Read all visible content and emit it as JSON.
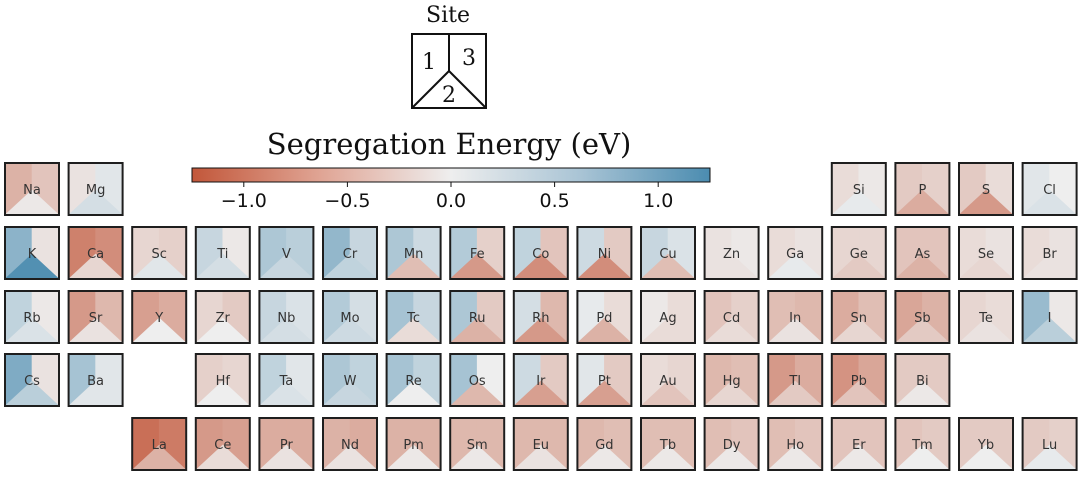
{
  "legend": {
    "title": "Site",
    "site_labels": [
      "1",
      "3",
      "2"
    ]
  },
  "colorbar": {
    "title": "Segregation Energy (eV)",
    "range": [
      -1.25,
      1.25
    ],
    "ticks": [
      -1.0,
      -0.5,
      0.0,
      0.5,
      1.0
    ],
    "tick_labels": [
      "−1.0",
      "−0.5",
      "0.0",
      "0.5",
      "1.0"
    ],
    "colors": {
      "negative": "#c2573a",
      "zero": "#eeeeee",
      "positive": "#4b8cb0"
    }
  },
  "chart_data": {
    "type": "heatmap",
    "value_order": [
      "site1",
      "site3",
      "site2"
    ],
    "elements": [
      {
        "symbol": "Na",
        "row": 0,
        "col": 0,
        "values": [
          -0.5,
          -0.35,
          -0.05
        ]
      },
      {
        "symbol": "Mg",
        "row": 0,
        "col": 1,
        "values": [
          -0.1,
          0.1,
          0.2
        ]
      },
      {
        "symbol": "Si",
        "row": 0,
        "col": 13,
        "values": [
          -0.15,
          -0.05,
          0.05
        ]
      },
      {
        "symbol": "P",
        "row": 0,
        "col": 14,
        "values": [
          -0.3,
          -0.25,
          -0.55
        ]
      },
      {
        "symbol": "S",
        "row": 0,
        "col": 15,
        "values": [
          -0.3,
          -0.15,
          -0.7
        ]
      },
      {
        "symbol": "Cl",
        "row": 0,
        "col": 16,
        "values": [
          0.1,
          0.0,
          0.15
        ]
      },
      {
        "symbol": "K",
        "row": 1,
        "col": 0,
        "values": [
          0.75,
          -0.1,
          1.2
        ]
      },
      {
        "symbol": "Ca",
        "row": 1,
        "col": 1,
        "values": [
          -0.9,
          -0.8,
          -0.2
        ]
      },
      {
        "symbol": "Sc",
        "row": 1,
        "col": 2,
        "values": [
          -0.2,
          -0.25,
          0.1
        ]
      },
      {
        "symbol": "Ti",
        "row": 1,
        "col": 3,
        "values": [
          0.3,
          -0.05,
          0.2
        ]
      },
      {
        "symbol": "V",
        "row": 1,
        "col": 4,
        "values": [
          0.5,
          0.4,
          0.3
        ]
      },
      {
        "symbol": "Cr",
        "row": 1,
        "col": 5,
        "values": [
          0.7,
          0.3,
          0.35
        ]
      },
      {
        "symbol": "Mn",
        "row": 1,
        "col": 6,
        "values": [
          0.5,
          0.25,
          -0.4
        ]
      },
      {
        "symbol": "Fe",
        "row": 1,
        "col": 7,
        "values": [
          0.45,
          -0.25,
          -0.7
        ]
      },
      {
        "symbol": "Co",
        "row": 1,
        "col": 8,
        "values": [
          0.35,
          -0.35,
          -0.8
        ]
      },
      {
        "symbol": "Ni",
        "row": 1,
        "col": 9,
        "values": [
          0.25,
          -0.3,
          -0.8
        ]
      },
      {
        "symbol": "Cu",
        "row": 1,
        "col": 10,
        "values": [
          0.3,
          0.15,
          -0.4
        ]
      },
      {
        "symbol": "Zn",
        "row": 1,
        "col": 11,
        "values": [
          -0.1,
          -0.05,
          -0.1
        ]
      },
      {
        "symbol": "Ga",
        "row": 1,
        "col": 12,
        "values": [
          -0.15,
          -0.1,
          0.05
        ]
      },
      {
        "symbol": "Ge",
        "row": 1,
        "col": 13,
        "values": [
          -0.2,
          -0.2,
          -0.3
        ]
      },
      {
        "symbol": "As",
        "row": 1,
        "col": 14,
        "values": [
          -0.35,
          -0.35,
          -0.5
        ]
      },
      {
        "symbol": "Se",
        "row": 1,
        "col": 15,
        "values": [
          -0.15,
          -0.1,
          -0.2
        ]
      },
      {
        "symbol": "Br",
        "row": 1,
        "col": 16,
        "values": [
          -0.15,
          -0.1,
          -0.1
        ]
      },
      {
        "symbol": "Rb",
        "row": 2,
        "col": 0,
        "values": [
          0.35,
          -0.05,
          0.15
        ]
      },
      {
        "symbol": "Sr",
        "row": 2,
        "col": 1,
        "values": [
          -0.7,
          -0.45,
          -0.1
        ]
      },
      {
        "symbol": "Y",
        "row": 2,
        "col": 2,
        "values": [
          -0.65,
          -0.55,
          0.0
        ]
      },
      {
        "symbol": "Zr",
        "row": 2,
        "col": 3,
        "values": [
          -0.2,
          -0.3,
          0.0
        ]
      },
      {
        "symbol": "Nb",
        "row": 2,
        "col": 4,
        "values": [
          0.3,
          0.15,
          0.2
        ]
      },
      {
        "symbol": "Mo",
        "row": 2,
        "col": 5,
        "values": [
          0.45,
          0.2,
          0.25
        ]
      },
      {
        "symbol": "Tc",
        "row": 2,
        "col": 6,
        "values": [
          0.55,
          0.3,
          -0.15
        ]
      },
      {
        "symbol": "Ru",
        "row": 2,
        "col": 7,
        "values": [
          0.5,
          -0.3,
          -0.5
        ]
      },
      {
        "symbol": "Rh",
        "row": 2,
        "col": 8,
        "values": [
          0.2,
          -0.45,
          -0.7
        ]
      },
      {
        "symbol": "Pd",
        "row": 2,
        "col": 9,
        "values": [
          0.05,
          -0.15,
          -0.5
        ]
      },
      {
        "symbol": "Ag",
        "row": 2,
        "col": 10,
        "values": [
          -0.05,
          -0.15,
          -0.15
        ]
      },
      {
        "symbol": "Cd",
        "row": 2,
        "col": 11,
        "values": [
          -0.35,
          -0.25,
          -0.15
        ]
      },
      {
        "symbol": "In",
        "row": 2,
        "col": 12,
        "values": [
          -0.4,
          -0.45,
          -0.1
        ]
      },
      {
        "symbol": "Sn",
        "row": 2,
        "col": 13,
        "values": [
          -0.55,
          -0.4,
          -0.2
        ]
      },
      {
        "symbol": "Sb",
        "row": 2,
        "col": 14,
        "values": [
          -0.6,
          -0.5,
          -0.3
        ]
      },
      {
        "symbol": "Te",
        "row": 2,
        "col": 15,
        "values": [
          -0.2,
          -0.15,
          -0.1
        ]
      },
      {
        "symbol": "I",
        "row": 2,
        "col": 16,
        "values": [
          0.65,
          -0.05,
          0.4
        ]
      },
      {
        "symbol": "Cs",
        "row": 3,
        "col": 0,
        "values": [
          0.85,
          -0.1,
          0.4
        ]
      },
      {
        "symbol": "Ba",
        "row": 3,
        "col": 1,
        "values": [
          0.55,
          0.1,
          0.1
        ]
      },
      {
        "symbol": "Hf",
        "row": 3,
        "col": 3,
        "values": [
          -0.25,
          -0.2,
          0.0
        ]
      },
      {
        "symbol": "Ta",
        "row": 3,
        "col": 4,
        "values": [
          0.35,
          0.1,
          0.15
        ]
      },
      {
        "symbol": "W",
        "row": 3,
        "col": 5,
        "values": [
          0.5,
          0.35,
          0.3
        ]
      },
      {
        "symbol": "Re",
        "row": 3,
        "col": 6,
        "values": [
          0.55,
          0.35,
          0.0
        ]
      },
      {
        "symbol": "Os",
        "row": 3,
        "col": 7,
        "values": [
          0.55,
          0.0,
          -0.45
        ]
      },
      {
        "symbol": "Ir",
        "row": 3,
        "col": 8,
        "values": [
          0.25,
          -0.3,
          -0.65
        ]
      },
      {
        "symbol": "Pt",
        "row": 3,
        "col": 9,
        "values": [
          0.1,
          -0.3,
          -0.65
        ]
      },
      {
        "symbol": "Au",
        "row": 3,
        "col": 10,
        "values": [
          -0.15,
          -0.2,
          -0.35
        ]
      },
      {
        "symbol": "Hg",
        "row": 3,
        "col": 11,
        "values": [
          -0.45,
          -0.4,
          -0.2
        ]
      },
      {
        "symbol": "Tl",
        "row": 3,
        "col": 12,
        "values": [
          -0.7,
          -0.55,
          -0.3
        ]
      },
      {
        "symbol": "Pb",
        "row": 3,
        "col": 13,
        "values": [
          -0.75,
          -0.6,
          -0.35
        ]
      },
      {
        "symbol": "Bi",
        "row": 3,
        "col": 14,
        "values": [
          -0.3,
          -0.3,
          -0.05
        ]
      },
      {
        "symbol": "La",
        "row": 4,
        "col": 2,
        "values": [
          -1.05,
          -0.95,
          -0.5
        ]
      },
      {
        "symbol": "Ce",
        "row": 4,
        "col": 3,
        "values": [
          -0.7,
          -0.65,
          -0.15
        ]
      },
      {
        "symbol": "Pr",
        "row": 4,
        "col": 4,
        "values": [
          -0.55,
          -0.55,
          -0.1
        ]
      },
      {
        "symbol": "Nd",
        "row": 4,
        "col": 5,
        "values": [
          -0.5,
          -0.55,
          -0.1
        ]
      },
      {
        "symbol": "Pm",
        "row": 4,
        "col": 6,
        "values": [
          -0.5,
          -0.5,
          -0.05
        ]
      },
      {
        "symbol": "Sm",
        "row": 4,
        "col": 7,
        "values": [
          -0.45,
          -0.45,
          -0.05
        ]
      },
      {
        "symbol": "Eu",
        "row": 4,
        "col": 8,
        "values": [
          -0.45,
          -0.45,
          -0.1
        ]
      },
      {
        "symbol": "Gd",
        "row": 4,
        "col": 9,
        "values": [
          -0.45,
          -0.4,
          -0.05
        ]
      },
      {
        "symbol": "Tb",
        "row": 4,
        "col": 10,
        "values": [
          -0.4,
          -0.4,
          -0.05
        ]
      },
      {
        "symbol": "Dy",
        "row": 4,
        "col": 11,
        "values": [
          -0.4,
          -0.35,
          -0.05
        ]
      },
      {
        "symbol": "Ho",
        "row": 4,
        "col": 12,
        "values": [
          -0.4,
          -0.35,
          -0.05
        ]
      },
      {
        "symbol": "Er",
        "row": 4,
        "col": 13,
        "values": [
          -0.35,
          -0.35,
          -0.05
        ]
      },
      {
        "symbol": "Tm",
        "row": 4,
        "col": 14,
        "values": [
          -0.35,
          -0.3,
          0.0
        ]
      },
      {
        "symbol": "Yb",
        "row": 4,
        "col": 15,
        "values": [
          -0.3,
          -0.3,
          0.0
        ]
      },
      {
        "symbol": "Lu",
        "row": 4,
        "col": 16,
        "values": [
          -0.3,
          -0.25,
          0.05
        ]
      }
    ]
  }
}
